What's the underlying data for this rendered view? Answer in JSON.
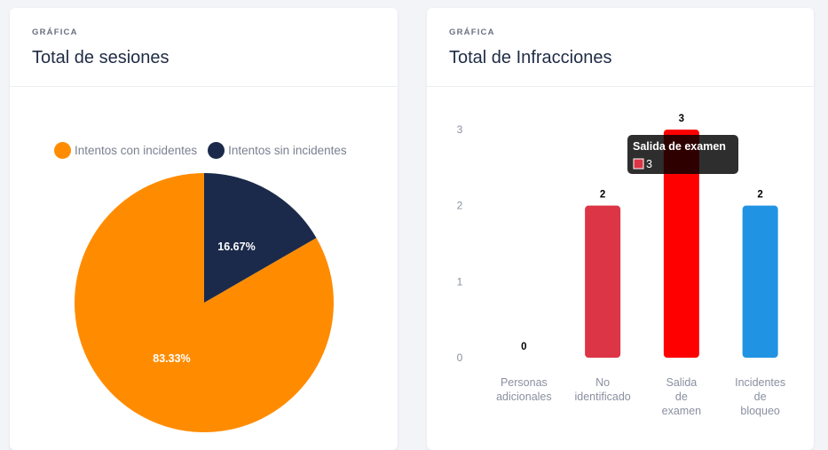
{
  "pie_card": {
    "eyebrow": "GRÁFICA",
    "title": "Total de sesiones"
  },
  "bar_card": {
    "eyebrow": "GRÁFICA",
    "title": "Total de Infracciones"
  },
  "tooltip": {
    "title": "Salida de examen",
    "value": "3",
    "color": "#dc3545"
  },
  "chart_data": [
    {
      "type": "pie",
      "title": "Total de sesiones",
      "legend_position": "top",
      "labels": [
        "Intentos con incidentes",
        "Intentos sin incidentes"
      ],
      "values": [
        83.33,
        16.67
      ],
      "data_labels": [
        "83.33%",
        "16.67%"
      ],
      "colors": [
        "#ff8c00",
        "#1b2a4a"
      ]
    },
    {
      "type": "bar",
      "title": "Total de Infracciones",
      "categories": [
        [
          "Personas",
          "adicionales"
        ],
        [
          "No",
          "identificado"
        ],
        [
          "Salida",
          "de",
          "examen"
        ],
        [
          "Incidentes",
          "de",
          "bloqueo"
        ]
      ],
      "values": [
        0,
        2,
        3,
        2
      ],
      "data_labels": [
        "0",
        "2",
        "3",
        "2"
      ],
      "colors": [
        "#ff8c00",
        "#dc3545",
        "#ff0000",
        "#2094e3"
      ],
      "yticks": [
        "0",
        "1",
        "2",
        "3"
      ],
      "ylim": [
        0,
        3
      ],
      "grid": false
    }
  ]
}
